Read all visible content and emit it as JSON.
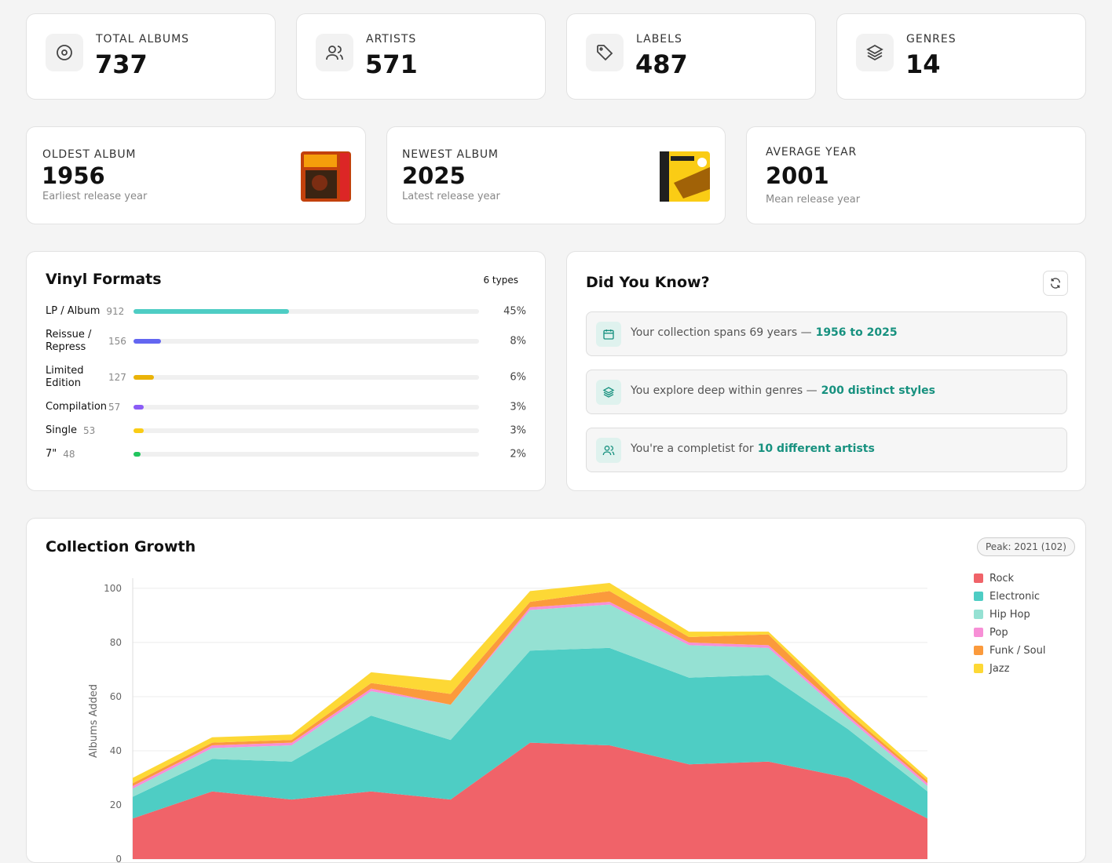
{
  "stats": [
    {
      "label": "TOTAL ALBUMS",
      "value": 737
    },
    {
      "label": "ARTISTS",
      "value": 571
    },
    {
      "label": "LABELS",
      "value": 487
    },
    {
      "label": "GENRES",
      "value": 14
    }
  ],
  "years": [
    {
      "label": "OLDEST ALBUM",
      "value": 1956,
      "caption": "Earliest release year"
    },
    {
      "label": "NEWEST ALBUM",
      "value": 2025,
      "caption": "Latest release year"
    },
    {
      "label": "AVERAGE YEAR",
      "value": 2001,
      "caption": "Mean release year"
    }
  ],
  "formats": {
    "title": "Vinyl Formats",
    "badge": "6 types",
    "items": [
      {
        "name": "LP / Album",
        "count": 912,
        "percent": 45,
        "percent_label": "45%",
        "color": "#4ecdc4"
      },
      {
        "name": "Reissue / Repress",
        "count": 156,
        "percent": 8,
        "percent_label": "8%",
        "color": "#6366f1"
      },
      {
        "name": "Limited Edition",
        "count": 127,
        "percent": 6,
        "percent_label": "6%",
        "color": "#eab308"
      },
      {
        "name": "Compilation",
        "count": 57,
        "percent": 3,
        "percent_label": "3%",
        "color": "#8b5cf6"
      },
      {
        "name": "Single",
        "count": 53,
        "percent": 3,
        "percent_label": "3%",
        "color": "#facc15"
      },
      {
        "name": "7\"",
        "count": 48,
        "percent": 2,
        "percent_label": "2%",
        "color": "#22c55e"
      }
    ]
  },
  "facts": {
    "title": "Did You Know?",
    "items": [
      {
        "text": "Your collection spans 69 years —",
        "highlight": "1956 to 2025"
      },
      {
        "text": "You explore deep within genres —",
        "highlight": "200 distinct styles"
      },
      {
        "text": "You're a completist for",
        "highlight": "10 different artists"
      }
    ]
  },
  "chart_data": {
    "type": "stacked-area",
    "title": "Collection Growth",
    "badge": "Peak: 2021 (102)",
    "y_label": "Albums Added",
    "categories": [
      null,
      null,
      null,
      null,
      null,
      null,
      null,
      null,
      null,
      null,
      null
    ],
    "ylim": [
      0,
      102
    ],
    "yticks": [
      0,
      20,
      40,
      60,
      80,
      100
    ],
    "grid": true,
    "legend": "right",
    "series": [
      {
        "name": "Rock",
        "color": "#f06369",
        "values": [
          15,
          25,
          22,
          25,
          22,
          43,
          42,
          35,
          36,
          30,
          15
        ]
      },
      {
        "name": "Electronic",
        "color": "#4ecdc4",
        "values": [
          8,
          12,
          14,
          28,
          22,
          34,
          36,
          32,
          32,
          18,
          10
        ]
      },
      {
        "name": "Hip Hop",
        "color": "#95e1d3",
        "values": [
          3,
          4,
          6,
          9,
          13,
          15,
          16,
          12,
          10,
          4,
          2
        ]
      },
      {
        "name": "Pop",
        "color": "#f78fd6",
        "values": [
          1,
          1,
          1,
          1,
          0,
          1,
          1,
          1,
          1,
          1,
          1
        ]
      },
      {
        "name": "Funk / Soul",
        "color": "#fb9a3c",
        "values": [
          1,
          1,
          1,
          2,
          4,
          2,
          4,
          2,
          4,
          1,
          1
        ]
      },
      {
        "name": "Jazz",
        "color": "#fdd835",
        "values": [
          2,
          2,
          2,
          4,
          5,
          4,
          3,
          2,
          1,
          2,
          1
        ]
      }
    ]
  }
}
